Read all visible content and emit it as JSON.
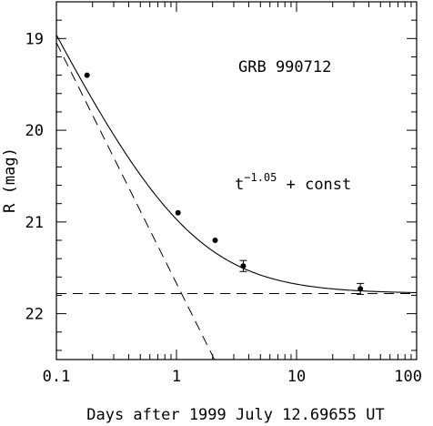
{
  "chart_data": {
    "type": "scatter",
    "xlabel": "Days after 1999 July 12.69655 UT",
    "ylabel": "R (mag)",
    "xscale": "log",
    "xlim": [
      0.1,
      100
    ],
    "ylim": [
      22.5,
      18.6
    ],
    "y_inverted": true,
    "grid": false,
    "x_ticks": [
      {
        "value": 0.1,
        "label": "0.1"
      },
      {
        "value": 1,
        "label": "1"
      },
      {
        "value": 10,
        "label": "10"
      },
      {
        "value": 100,
        "label": "100"
      }
    ],
    "y_ticks": [
      {
        "value": 19,
        "label": "19"
      },
      {
        "value": 20,
        "label": "20"
      },
      {
        "value": 21,
        "label": "21"
      },
      {
        "value": 22,
        "label": "22"
      }
    ],
    "annotations": {
      "name": "GRB 990712",
      "model_base": "t",
      "model_exp": "−1.05",
      "model_rest": " + const"
    },
    "points": [
      {
        "x": 0.18,
        "y": 19.4,
        "yerr": 0
      },
      {
        "x": 1.03,
        "y": 20.9,
        "yerr": 0
      },
      {
        "x": 2.1,
        "y": 21.2,
        "yerr": 0
      },
      {
        "x": 3.6,
        "y": 21.48,
        "yerr": 0.06
      },
      {
        "x": 34,
        "y": 21.73,
        "yerr": 0.06
      }
    ],
    "model": {
      "exponent": -1.05,
      "power_law_mag_at_1day": 21.67,
      "constant_mag": 21.78
    }
  }
}
